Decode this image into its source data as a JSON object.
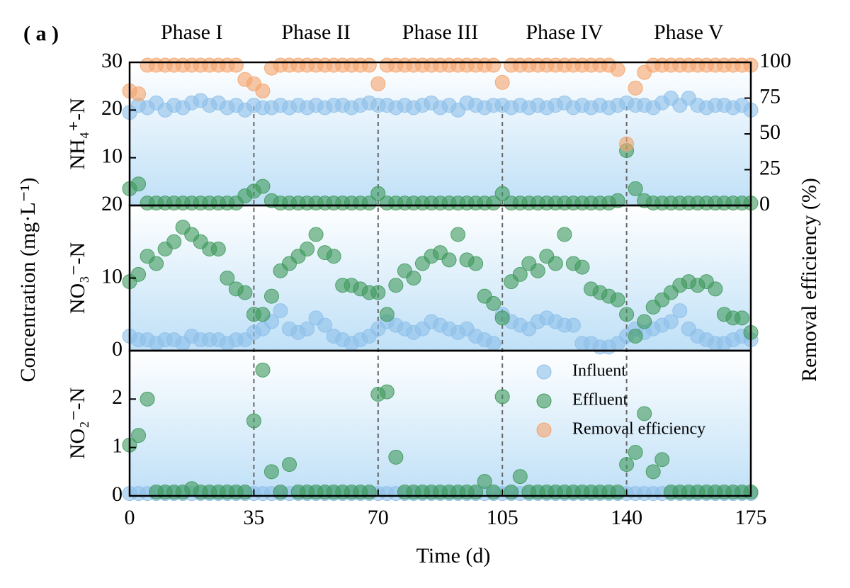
{
  "figure": {
    "panel_label": "( a )",
    "phases": [
      "Phase I",
      "Phase II",
      "Phase III",
      "Phase IV",
      "Phase V"
    ],
    "phase_boundaries": [
      35,
      70,
      105,
      140
    ],
    "ylabel": "Concentration (mg·L⁻¹)",
    "y2label": "Removal efficiency (%)",
    "xlabel": "Time (d)",
    "xlim": [
      0,
      175
    ],
    "xticks": [
      0,
      35,
      70,
      105,
      140,
      175
    ],
    "legend": "upper right"
  },
  "chart_data": [
    {
      "type": "scatter",
      "ylabel": "NH₄⁺-N",
      "ylim": [
        0,
        30
      ],
      "yticks": [
        10,
        20,
        30
      ],
      "y2lim": [
        0,
        100
      ],
      "y2ticks": [
        0,
        25,
        50,
        75,
        100
      ],
      "x": [
        0,
        2.5,
        5,
        7.5,
        10,
        12.5,
        15,
        17.5,
        20,
        22.5,
        25,
        27.5,
        30,
        32.5,
        35,
        37.5,
        40,
        42.5,
        45,
        47.5,
        50,
        52.5,
        55,
        57.5,
        60,
        62.5,
        65,
        67.5,
        70,
        72.5,
        75,
        77.5,
        80,
        82.5,
        85,
        87.5,
        90,
        92.5,
        95,
        97.5,
        100,
        102.5,
        105,
        107.5,
        110,
        112.5,
        115,
        117.5,
        120,
        122.5,
        125,
        127.5,
        130,
        132.5,
        135,
        137.5,
        140,
        142.5,
        145,
        147.5,
        150,
        152.5,
        155,
        157.5,
        160,
        162.5,
        165,
        167.5,
        170,
        172.5,
        175
      ],
      "series": [
        {
          "color": "#8dbfe9",
          "values": [
            19.5,
            21,
            20.5,
            21.5,
            20,
            21,
            20.5,
            21.5,
            22,
            21,
            21.5,
            20.5,
            21,
            20,
            21,
            20.5,
            20.5,
            21,
            20.5,
            21,
            20.5,
            21,
            20.5,
            21,
            21,
            20.5,
            21,
            21.5,
            21,
            21,
            20.5,
            21,
            20.5,
            21,
            21.5,
            20.5,
            21,
            20,
            21.5,
            21,
            20.5,
            21,
            21,
            20.5,
            21,
            20.5,
            21,
            20.5,
            21,
            21.5,
            20.5,
            21,
            20.5,
            21,
            20.5,
            21,
            21.5,
            21,
            21,
            20.5,
            21.5,
            22.5,
            21,
            22.5,
            21,
            20.5,
            21,
            21,
            20.5,
            21,
            20
          ]
        },
        {
          "color": "#3f9a5c",
          "values": [
            3.5,
            4.5,
            0.5,
            0.5,
            0.5,
            0.5,
            0.5,
            0.5,
            0.5,
            0.5,
            0.5,
            0.5,
            0.5,
            2,
            3,
            4,
            1,
            0.5,
            0.5,
            0.5,
            0.5,
            0.5,
            0.5,
            0.5,
            0.5,
            0.5,
            0.5,
            0.5,
            2.5,
            0.5,
            0.5,
            0.5,
            0.5,
            0.5,
            0.5,
            0.5,
            0.5,
            0.5,
            0.5,
            0.5,
            0.5,
            0.5,
            2.5,
            0.5,
            0.5,
            0.5,
            0.5,
            0.5,
            0.5,
            0.5,
            0.5,
            0.5,
            0.5,
            0.5,
            0.5,
            1,
            11.5,
            3.5,
            1,
            0.5,
            0.5,
            0.5,
            0.5,
            0.5,
            0.5,
            0.5,
            0.5,
            0.5,
            0.5,
            0.5,
            0.5
          ]
        },
        {
          "name": "Removal efficiency",
          "color": "#f5a46a",
          "axis": "y2",
          "values": [
            80,
            78,
            98,
            98,
            98,
            98,
            98,
            98,
            98,
            98,
            98,
            98,
            98,
            88,
            85,
            80,
            96,
            98,
            98,
            98,
            98,
            98,
            98,
            98,
            98,
            98,
            98,
            98,
            85,
            98,
            98,
            98,
            98,
            98,
            98,
            98,
            98,
            98,
            98,
            98,
            98,
            98,
            86,
            98,
            98,
            98,
            98,
            98,
            98,
            98,
            98,
            98,
            98,
            98,
            98,
            95,
            43,
            82,
            93,
            98,
            98,
            98,
            98,
            98,
            98,
            98,
            98,
            98,
            98,
            98,
            98
          ]
        }
      ]
    },
    {
      "type": "scatter",
      "ylabel": "NO₃⁻-N",
      "ylim": [
        0,
        20
      ],
      "yticks": [
        0,
        10,
        20
      ],
      "x": [
        0,
        2.5,
        5,
        7.5,
        10,
        12.5,
        15,
        17.5,
        20,
        22.5,
        25,
        27.5,
        30,
        32.5,
        35,
        37.5,
        40,
        42.5,
        45,
        47.5,
        50,
        52.5,
        55,
        57.5,
        60,
        62.5,
        65,
        67.5,
        70,
        72.5,
        75,
        77.5,
        80,
        82.5,
        85,
        87.5,
        90,
        92.5,
        95,
        97.5,
        100,
        102.5,
        105,
        107.5,
        110,
        112.5,
        115,
        117.5,
        120,
        122.5,
        125,
        127.5,
        130,
        132.5,
        135,
        137.5,
        140,
        142.5,
        145,
        147.5,
        150,
        152.5,
        155,
        157.5,
        160,
        162.5,
        165,
        167.5,
        170,
        172.5,
        175
      ],
      "series": [
        {
          "color": "#8dbfe9",
          "values": [
            2,
            1.5,
            1.5,
            1,
            1.5,
            1.5,
            1,
            2,
            1.5,
            1.5,
            1.5,
            1,
            1.5,
            1.5,
            2.5,
            3,
            4,
            5.5,
            3,
            2.5,
            3,
            4.5,
            3.5,
            2,
            1.5,
            1,
            1.5,
            2,
            3,
            4,
            3.5,
            3,
            2.5,
            3,
            4,
            3.5,
            3,
            2.5,
            3,
            2,
            1.5,
            1,
            5,
            4,
            3.5,
            3,
            4,
            4.5,
            4,
            3.5,
            3.5,
            1,
            1,
            0.5,
            0.5,
            1,
            2,
            3,
            2.5,
            3,
            3.5,
            4,
            5.5,
            3,
            2,
            1.5,
            1,
            1,
            1.5,
            2,
            1.5
          ]
        },
        {
          "color": "#3f9a5c",
          "values": [
            9.5,
            10.5,
            13,
            12,
            14,
            15,
            17,
            16,
            15,
            14,
            14,
            10,
            8.5,
            8,
            5,
            5,
            7.5,
            11,
            12,
            13,
            14,
            16,
            13.5,
            13,
            9,
            9,
            8.5,
            8,
            8,
            5,
            9,
            11,
            10,
            12,
            13,
            13.5,
            12.5,
            16,
            12.5,
            12,
            7.5,
            6.5,
            4.5,
            9.5,
            10.5,
            12,
            11,
            13,
            12,
            16,
            12,
            11.5,
            8.5,
            8,
            7.5,
            7,
            5,
            2,
            4,
            6,
            7,
            8,
            9,
            9.5,
            9,
            9.5,
            8.5,
            5,
            4.5,
            4.5,
            2.5
          ]
        }
      ]
    },
    {
      "type": "scatter",
      "ylabel": "NO₂⁻-N",
      "ylim": [
        0,
        3
      ],
      "yticks": [
        0,
        1,
        2
      ],
      "x": [
        0,
        2.5,
        5,
        7.5,
        10,
        12.5,
        15,
        17.5,
        20,
        22.5,
        25,
        27.5,
        30,
        32.5,
        35,
        37.5,
        40,
        42.5,
        45,
        47.5,
        50,
        52.5,
        55,
        57.5,
        60,
        62.5,
        65,
        67.5,
        70,
        72.5,
        75,
        77.5,
        80,
        82.5,
        85,
        87.5,
        90,
        92.5,
        95,
        97.5,
        100,
        102.5,
        105,
        107.5,
        110,
        112.5,
        115,
        117.5,
        120,
        122.5,
        125,
        127.5,
        130,
        132.5,
        135,
        137.5,
        140,
        142.5,
        145,
        147.5,
        150,
        152.5,
        155,
        157.5,
        160,
        162.5,
        165,
        167.5,
        170,
        172.5,
        175
      ],
      "series": [
        {
          "name": "Influent",
          "color": "#8dbfe9",
          "values": [
            0.05,
            0.05,
            0.05,
            0.05,
            0.05,
            0.05,
            0.05,
            0.05,
            0.05,
            0.05,
            0.05,
            0.05,
            0.05,
            0.05,
            0.05,
            0.05,
            0.05,
            0.05,
            0.05,
            0.05,
            0.05,
            0.05,
            0.05,
            0.05,
            0.05,
            0.05,
            0.05,
            0.05,
            0.05,
            0.05,
            0.05,
            0.05,
            0.05,
            0.05,
            0.05,
            0.05,
            0.05,
            0.05,
            0.05,
            0.05,
            0.05,
            0.05,
            0.05,
            0.05,
            0.05,
            0.05,
            0.05,
            0.05,
            0.05,
            0.05,
            0.05,
            0.05,
            0.05,
            0.05,
            0.05,
            0.05,
            0.05,
            0.05,
            0.05,
            0.05,
            0.05,
            0.05,
            0.05,
            0.05,
            0.05,
            0.05,
            0.05,
            0.05,
            0.05,
            0.05,
            0.05
          ]
        },
        {
          "name": "Effluent",
          "color": "#3f9a5c",
          "values": [
            1.05,
            1.25,
            2.0,
            0.08,
            0.08,
            0.08,
            0.08,
            0.15,
            0.08,
            0.08,
            0.08,
            0.08,
            0.08,
            0.08,
            1.55,
            2.6,
            0.5,
            0.08,
            0.65,
            0.08,
            0.08,
            0.08,
            0.08,
            0.08,
            0.08,
            0.08,
            0.08,
            0.08,
            2.1,
            2.15,
            0.8,
            0.08,
            0.08,
            0.08,
            0.08,
            0.08,
            0.08,
            0.08,
            0.08,
            0.08,
            0.3,
            0.08,
            2.05,
            0.08,
            0.4,
            0.08,
            0.08,
            0.08,
            0.08,
            0.08,
            0.08,
            0.08,
            0.08,
            0.08,
            0.08,
            0.08,
            0.65,
            0.9,
            1.7,
            0.5,
            0.75,
            0.08,
            0.08,
            0.08,
            0.08,
            0.08,
            0.08,
            0.08,
            0.08,
            0.08,
            0.08
          ]
        }
      ]
    }
  ]
}
